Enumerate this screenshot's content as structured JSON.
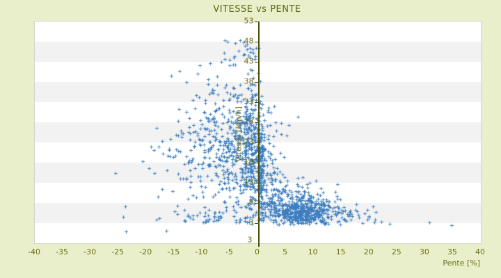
{
  "chart_data": {
    "type": "scatter",
    "title": "VITESSE vs PENTE",
    "xlabel": "Pente [%]",
    "ylabel": "Vitesse [km/h]",
    "xlim": [
      -40,
      40
    ],
    "ylim": [
      -2,
      53
    ],
    "xticks": [
      -40,
      -35,
      -30,
      -25,
      -20,
      -15,
      -10,
      -5,
      0,
      5,
      10,
      15,
      20,
      25,
      30,
      35,
      40
    ],
    "yticks": [
      53,
      48,
      43,
      38,
      33,
      28,
      23,
      18,
      13,
      8,
      3
    ],
    "y_axis_bottom_label": "3",
    "grid": "horizontal-bands",
    "legend": "none",
    "y_axis_position_x": 0,
    "marker": "plus",
    "n_points_estimate": 1500,
    "colors": {
      "background": "#e9efca",
      "band_light": "#ffffff",
      "band_dark": "#f2f2f2",
      "plot_border": "#d2d2d2",
      "axis_line": "#4c510e",
      "text": "#6b7015",
      "title_text": "#5e6414",
      "point": "#3c7dbf"
    },
    "seed": 1234,
    "clusters": [
      {
        "name": "dense-climb-core",
        "n": 420,
        "xm": 7.5,
        "xs": 3.2,
        "xabs": 0,
        "xlo": 0.5,
        "xhi": 18,
        "ym": 5.5,
        "ys": 1.8,
        "yslope": 0,
        "ylo": 2.6,
        "yhi": 12
      },
      {
        "name": "climb-upper",
        "n": 170,
        "xm": 7.0,
        "xs": 4.2,
        "xabs": 0,
        "xlo": 0.5,
        "xhi": 19,
        "ym": 9.5,
        "ys": 2.6,
        "yslope": -0.15,
        "ylo": 2.6,
        "yhi": 17
      },
      {
        "name": "axis-column",
        "n": 170,
        "xm": 0,
        "xs": 0.6,
        "xabs": 1,
        "xlo": 0,
        "xhi": 2.5,
        "ym": 17,
        "ys": 9.0,
        "yslope": 0,
        "ylo": 2.8,
        "yhi": 40
      },
      {
        "name": "descent-fan",
        "n": 500,
        "xm": 0,
        "xs": 7.5,
        "xabs": -1,
        "xlo": -27,
        "xhi": -0.2,
        "ym": 24,
        "ys": 8.0,
        "yslope": 0.25,
        "ylo": 3.0,
        "yhi": 46
      },
      {
        "name": "near-axis-left",
        "n": 140,
        "xm": 0,
        "xs": 2.0,
        "xabs": -1,
        "xlo": -6,
        "xhi": -0.1,
        "ym": 20,
        "ys": 9.0,
        "yslope": 0,
        "ylo": 3.0,
        "yhi": 43
      },
      {
        "name": "high-speed-descent",
        "n": 24,
        "xm": -2.5,
        "xs": 1.8,
        "xabs": 0,
        "xlo": -7,
        "xhi": 0.5,
        "ym": 44.5,
        "ys": 2.2,
        "yslope": 0,
        "ylo": 40.5,
        "yhi": 48.6
      },
      {
        "name": "steep-right-tail",
        "n": 24,
        "xm": 17,
        "xs": 3.0,
        "xabs": 0,
        "xlo": 15,
        "xhi": 30,
        "ym": 5.0,
        "ys": 1.6,
        "yslope": 0,
        "ylo": 2.4,
        "yhi": 8.5
      },
      {
        "name": "left-low-speed",
        "n": 45,
        "xm": -7,
        "xs": 5.5,
        "xabs": 0,
        "xlo": -21,
        "xhi": -0.5,
        "ym": 4.5,
        "ys": 1.2,
        "yslope": 0,
        "ylo": 2.6,
        "yhi": 7.5
      },
      {
        "name": "right-mid-speed",
        "n": 85,
        "xm": 0,
        "xs": 2.4,
        "xabs": 1,
        "xlo": 0.1,
        "xhi": 8,
        "ym": 17,
        "ys": 6.0,
        "yslope": 0,
        "ylo": 9.0,
        "yhi": 34
      }
    ],
    "outlier_points": [
      [
        -25.5,
        15.4
      ],
      [
        -24.1,
        4.6
      ],
      [
        -23.8,
        7.2
      ],
      [
        -23.7,
        0.9
      ],
      [
        -16.4,
        1.1
      ],
      [
        -20.6,
        18.3
      ],
      [
        -14.1,
        40.7
      ],
      [
        30.8,
        3.1
      ],
      [
        34.7,
        2.4
      ],
      [
        22.1,
        3.3
      ],
      [
        23.6,
        2.8
      ],
      [
        19.9,
        4.3
      ],
      [
        0.2,
        46.5
      ],
      [
        0.1,
        40.3
      ],
      [
        0.4,
        38.2
      ],
      [
        -3.2,
        48.4
      ],
      [
        -2.6,
        47.9
      ],
      [
        -1.9,
        47.3
      ],
      [
        -4.1,
        47.6
      ],
      [
        7.2,
        29.3
      ],
      [
        1.8,
        30.6
      ],
      [
        -8.6,
        42.7
      ],
      [
        -5.1,
        43.5
      ]
    ]
  }
}
